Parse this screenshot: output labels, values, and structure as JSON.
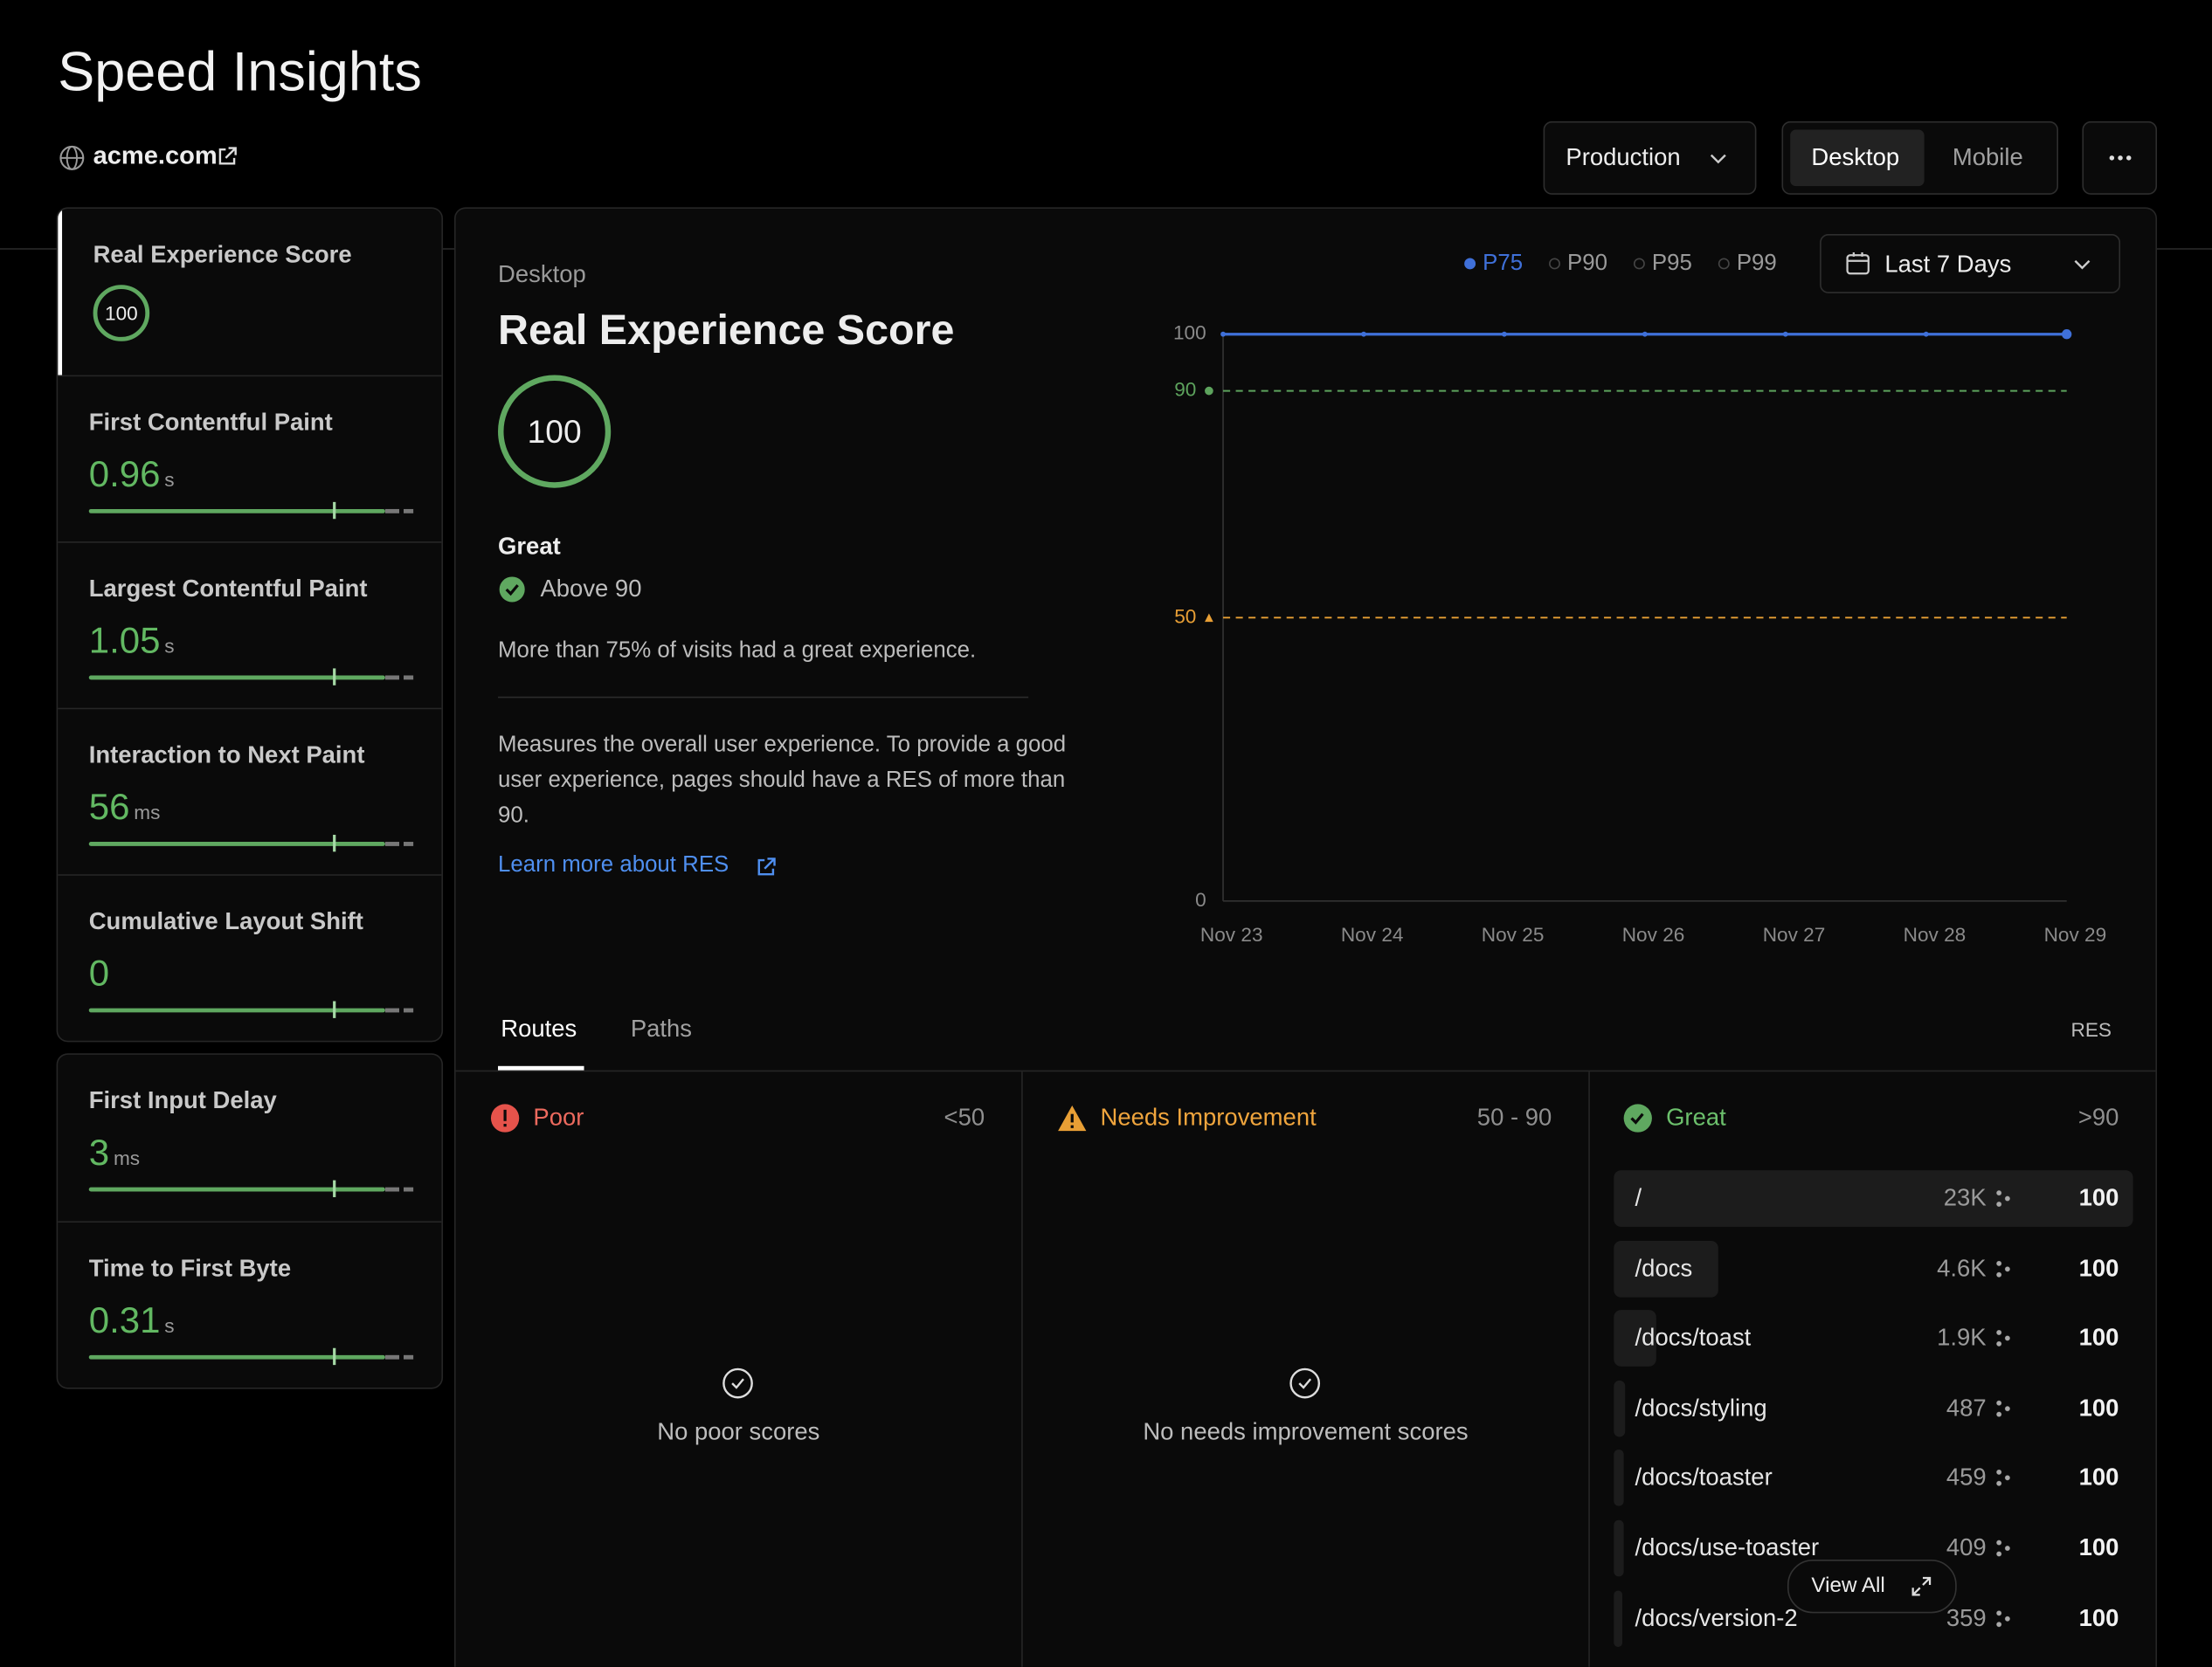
{
  "header": {
    "title": "Speed Insights",
    "site": "acme.com",
    "environment": "Production",
    "devices": [
      "Desktop",
      "Mobile"
    ]
  },
  "sidebar": [
    [
      {
        "name": "Real Experience Score",
        "value": 100
      },
      {
        "name": "First Contentful Paint",
        "value": 0.96,
        "unit": "s"
      },
      {
        "name": "Largest Contentful Paint",
        "value": 1.05,
        "unit": "s"
      },
      {
        "name": "Interaction to Next Paint",
        "value": 56,
        "unit": "ms"
      },
      {
        "name": "Cumulative Layout Shift",
        "value": 0
      }
    ],
    [
      {
        "name": "First Input Delay",
        "value": 3,
        "unit": "ms"
      },
      {
        "name": "Time to First Byte",
        "value": 0.31,
        "unit": "s"
      }
    ]
  ],
  "panel": {
    "device": "Desktop",
    "title": "Real Experience Score",
    "score": 100,
    "rating": "Great",
    "rating_note": "Above 90",
    "summary": "More than 75% of visits had a great experience.",
    "description": "Measures the overall user experience. To provide a good user experience, pages should have a RES of more than 90.",
    "link": "Learn more about RES"
  },
  "chart_data": {
    "type": "line",
    "range": "Last 7 Days",
    "inactive_percentiles": [
      "P90",
      "P95",
      "P99"
    ],
    "categories": [
      "Nov 23",
      "Nov 24",
      "Nov 25",
      "Nov 26",
      "Nov 27",
      "Nov 28",
      "Nov 29"
    ],
    "series": [
      {
        "name": "P75",
        "color": "#3f70d9",
        "values": [
          100,
          100,
          100,
          100,
          100,
          100,
          100
        ]
      }
    ],
    "thresholds": [
      {
        "value": 90,
        "color": "#5da35d"
      },
      {
        "value": 50,
        "color": "#e89f35"
      }
    ],
    "ylim": [
      0,
      100
    ],
    "yticks": [
      0,
      100
    ],
    "grid": false
  },
  "routes": {
    "tabs": [
      "Routes",
      "Paths"
    ],
    "metric": "RES",
    "columns": [
      {
        "title": "Poor",
        "range": "<50",
        "empty": "No poor scores"
      },
      {
        "title": "Needs Improvement",
        "range": "50 - 90",
        "empty": "No needs improvement scores"
      },
      {
        "title": "Great",
        "range": ">90",
        "rows": [
          {
            "route": "/",
            "visits": {
              "value": 23000,
              "label": "23K"
            },
            "score": 100
          },
          {
            "route": "/docs",
            "visits": {
              "value": 4600,
              "label": "4.6K"
            },
            "score": 100
          },
          {
            "route": "/docs/toast",
            "visits": {
              "value": 1900,
              "label": "1.9K"
            },
            "score": 100
          },
          {
            "route": "/docs/styling",
            "visits": 487,
            "score": 100
          },
          {
            "route": "/docs/toaster",
            "visits": 459,
            "score": 100
          },
          {
            "route": "/docs/use-toaster",
            "visits": 409,
            "score": 100
          },
          {
            "route": "/docs/version-2",
            "visits": 359,
            "score": 100
          }
        ]
      }
    ],
    "view_all": "View All"
  }
}
